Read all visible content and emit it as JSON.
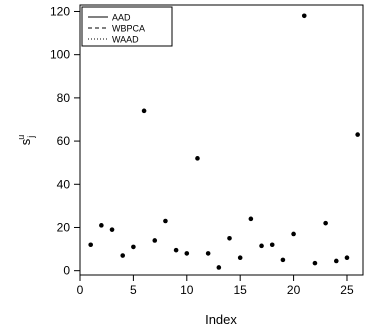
{
  "chart_data": {
    "type": "scatter",
    "xlabel": "Index",
    "ylabel": "s_j^u",
    "xlim": [
      0,
      26.5
    ],
    "ylim": [
      -2,
      123
    ],
    "x_ticks": [
      0,
      5,
      10,
      15,
      20,
      25
    ],
    "y_ticks": [
      0,
      20,
      40,
      60,
      80,
      100,
      120
    ],
    "grid": false,
    "legend_position": "top-left",
    "legend": [
      {
        "label": "AAD",
        "line_style": "solid"
      },
      {
        "label": "WBPCA",
        "line_style": "dashed"
      },
      {
        "label": "WAAD",
        "line_style": "dotted"
      }
    ],
    "series": [
      {
        "x": [
          1,
          2,
          3,
          4,
          5,
          6,
          7,
          8,
          9,
          10,
          11,
          12,
          13,
          14,
          15,
          16,
          17,
          18,
          19,
          20,
          21,
          22,
          23,
          24,
          25,
          26
        ],
        "y": [
          12,
          21,
          19,
          7,
          11,
          74,
          14,
          23,
          9.5,
          8,
          52,
          8,
          1.5,
          15,
          6,
          24,
          11.5,
          12,
          5,
          17,
          118,
          3.5,
          22,
          4.5,
          6,
          63
        ]
      }
    ]
  }
}
